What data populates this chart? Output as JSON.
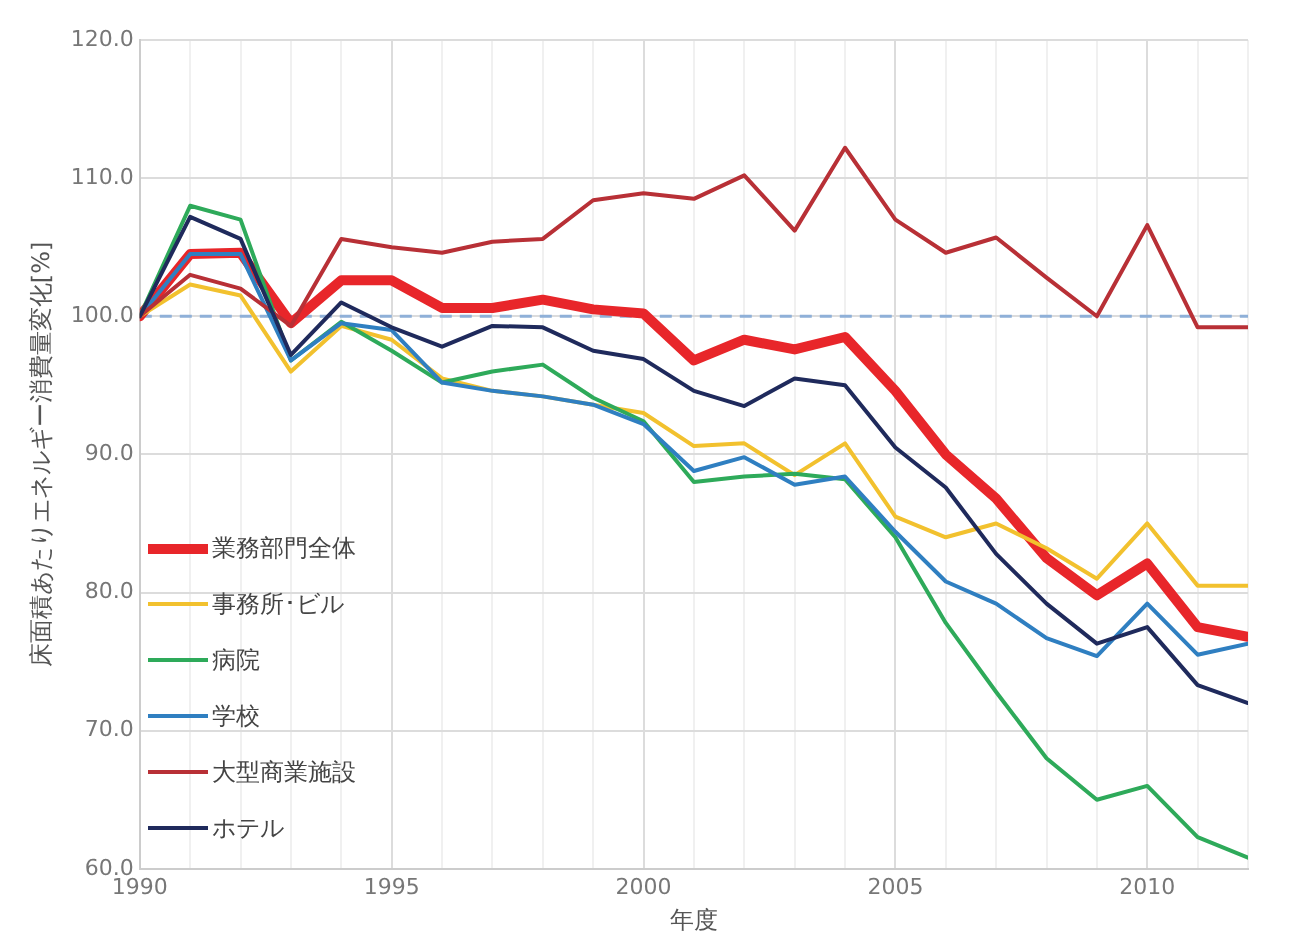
{
  "chart_data": {
    "type": "line",
    "xlabel": "年度",
    "ylabel": "床面積あたりエネルギー消費量変化[%]",
    "x": [
      1990,
      1991,
      1992,
      1993,
      1994,
      1995,
      1996,
      1997,
      1998,
      1999,
      2000,
      2001,
      2002,
      2003,
      2004,
      2005,
      2006,
      2007,
      2008,
      2009,
      2010,
      2011,
      2012
    ],
    "series": [
      {
        "name": "業務部門全体",
        "color": "#e8262a",
        "values": [
          100,
          104.5,
          104.6,
          99.5,
          102.6,
          102.6,
          100.6,
          100.6,
          101.2,
          100.5,
          100.2,
          96.8,
          98.3,
          97.6,
          98.5,
          94.6,
          90,
          86.8,
          82.5,
          79.8,
          82.1,
          77.5,
          76.8
        ]
      },
      {
        "name": "事務所･ビル",
        "color": "#f2c12e",
        "values": [
          100,
          102.3,
          101.5,
          96,
          99.3,
          98.3,
          95.5,
          94.6,
          94.2,
          93.6,
          93,
          90.6,
          90.8,
          88.5,
          90.8,
          85.5,
          84,
          85,
          83.2,
          81,
          85,
          80.5,
          80.5
        ]
      },
      {
        "name": "病院",
        "color": "#2eaa5a",
        "values": [
          100,
          108,
          107,
          96.8,
          99.6,
          97.5,
          95.2,
          96,
          96.5,
          94.1,
          92.4,
          88,
          88.4,
          88.6,
          88.2,
          84,
          77.8,
          72.8,
          68,
          65,
          66,
          62.3,
          60.8
        ]
      },
      {
        "name": "学校",
        "color": "#2f7fc1",
        "values": [
          100,
          104.5,
          104.5,
          96.8,
          99.5,
          99,
          95.2,
          94.6,
          94.2,
          93.6,
          92.2,
          88.8,
          89.8,
          87.8,
          88.4,
          84.4,
          80.8,
          79.2,
          76.7,
          75.4,
          79.2,
          75.5,
          76.3
        ]
      },
      {
        "name": "大型商業施設",
        "color": "#b83036",
        "values": [
          100,
          103,
          102,
          99.3,
          105.6,
          105,
          104.6,
          105.4,
          105.6,
          108.4,
          108.9,
          108.5,
          110.2,
          106.2,
          112.2,
          107,
          104.6,
          105.7,
          102.8,
          100,
          106.6,
          99.2,
          99.2
        ]
      },
      {
        "name": "ホテル",
        "color": "#1f2a5c",
        "values": [
          100,
          107.2,
          105.6,
          97.2,
          101,
          99.2,
          97.8,
          99.3,
          99.2,
          97.5,
          96.9,
          94.6,
          93.5,
          95.5,
          95,
          90.5,
          87.6,
          82.8,
          79.2,
          76.3,
          77.5,
          73.3,
          72
        ]
      }
    ],
    "xlim": [
      1990,
      2012
    ],
    "xticks": [
      1990,
      {
        "value": 1991,
        "label": null
      },
      {
        "value": 1992,
        "label": null
      },
      {
        "value": 1993,
        "label": null
      },
      {
        "value": 1994,
        "label": null
      },
      1995,
      {
        "value": 1996,
        "label": null
      },
      {
        "value": 1997,
        "label": null
      },
      {
        "value": 1998,
        "label": null
      },
      {
        "value": 1999,
        "label": null
      },
      2000,
      {
        "value": 2001,
        "label": null
      },
      {
        "value": 2002,
        "label": null
      },
      {
        "value": 2003,
        "label": null
      },
      {
        "value": 2004,
        "label": null
      },
      2005,
      {
        "value": 2006,
        "label": null
      },
      {
        "value": 2007,
        "label": null
      },
      {
        "value": 2008,
        "label": null
      },
      {
        "value": 2009,
        "label": null
      },
      2010,
      {
        "value": 2011,
        "label": null
      },
      {
        "value": 2012,
        "label": null
      }
    ],
    "ylim": [
      60,
      120
    ],
    "yticks": [
      {
        "value": 60,
        "label": "60.0"
      },
      {
        "value": 70,
        "label": "70.0"
      },
      {
        "value": 80,
        "label": "80.0"
      },
      {
        "value": 90,
        "label": "90.0"
      },
      {
        "value": 100,
        "label": "100.0"
      },
      {
        "value": 110,
        "label": "110.0"
      },
      {
        "value": 120,
        "label": "120.0"
      }
    ],
    "ref_lines": [
      {
        "axis": "y",
        "value": 100,
        "color": "#8fb0d8",
        "line_style": "dashed"
      }
    ],
    "grid": true,
    "legend": "bottom left",
    "marker": "none",
    "line_style": "solid"
  }
}
